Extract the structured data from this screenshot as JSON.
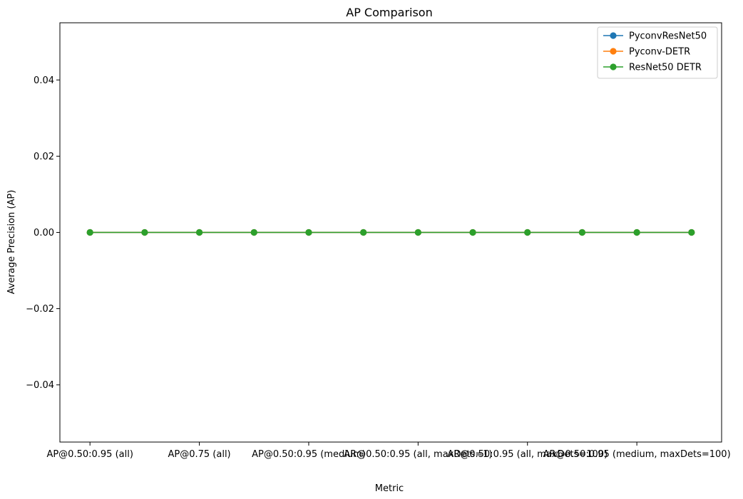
{
  "chart_data": {
    "type": "line",
    "title": "AP Comparison",
    "xlabel": "Metric",
    "ylabel": "Average Precision (AP)",
    "x_count": 12,
    "x_tick_indices": [
      0,
      2,
      4,
      6,
      8,
      10
    ],
    "x_tick_labels": [
      "AP@0.50:0.95 (all)",
      "AP@0.75 (all)",
      "AP@0.50:0.95 (medium)",
      "AR@0.50:0.95 (all, maxDets=1)",
      "AR@0.50:0.95 (all, maxDets=100)",
      "AR@0.50:0.95 (medium, maxDets=100)"
    ],
    "ylim": [
      -0.055,
      0.055
    ],
    "y_ticks": [
      -0.04,
      -0.02,
      0.0,
      0.02,
      0.04
    ],
    "y_tick_labels": [
      "−0.04",
      "−0.02",
      "0.00",
      "0.02",
      "0.04"
    ],
    "legend_position": "top-right",
    "marker": "circle",
    "series": [
      {
        "name": "PyconvResNet50",
        "color": "#1f77b4",
        "values": [
          0,
          0,
          0,
          0,
          0,
          0,
          0,
          0,
          0,
          0,
          0,
          0
        ]
      },
      {
        "name": "Pyconv-DETR",
        "color": "#ff7f0e",
        "values": [
          0,
          0,
          0,
          0,
          0,
          0,
          0,
          0,
          0,
          0,
          0,
          0
        ]
      },
      {
        "name": "ResNet50 DETR",
        "color": "#2ca02c",
        "values": [
          0,
          0,
          0,
          0,
          0,
          0,
          0,
          0,
          0,
          0,
          0,
          0
        ]
      }
    ]
  }
}
